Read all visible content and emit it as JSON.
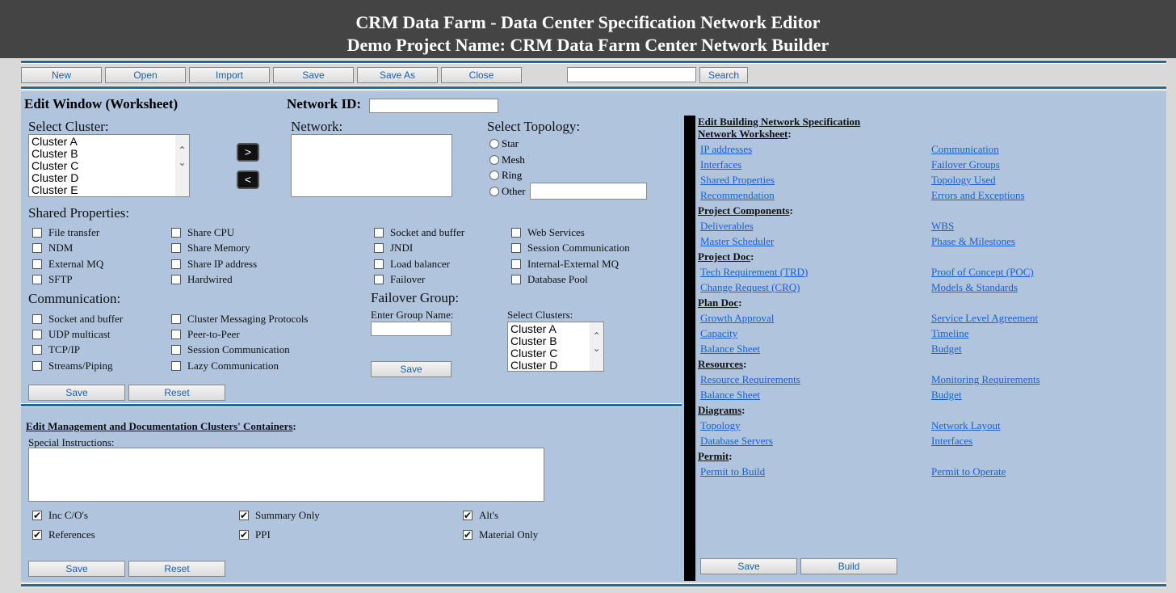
{
  "header": {
    "title": "CRM Data Farm - Data Center Specification Network Editor",
    "subtitle": "Demo Project Name: CRM Data Farm Center Network Builder"
  },
  "toolbar": {
    "buttons": [
      "New",
      "Open",
      "Import",
      "Save",
      "Save As",
      "Close"
    ],
    "search_value": "",
    "search_label": "Search"
  },
  "edit_window": {
    "title": "Edit Window (Worksheet)",
    "network_id_label": "Network ID:",
    "network_id_value": "",
    "select_cluster_label": "Select Cluster:",
    "clusters": [
      "Cluster A",
      "Cluster B",
      "Cluster C",
      "Cluster D",
      "Cluster E"
    ],
    "move_right": ">",
    "move_left": "<",
    "network_label": "Network:",
    "topology_label": "Select Topology:",
    "topologies": [
      "Star",
      "Mesh",
      "Ring",
      "Other"
    ],
    "other_value": "",
    "shared_label": "Shared Properties:",
    "shared": [
      [
        "File transfer",
        "NDM",
        "External MQ",
        "SFTP"
      ],
      [
        "Share CPU",
        "Share Memory",
        "Share IP address",
        "Hardwired"
      ],
      [
        "Socket and buffer",
        "JNDI",
        "Load balancer",
        "Failover"
      ],
      [
        "Web Services",
        "Session Communication",
        "Internal-External MQ",
        "Database Pool"
      ]
    ],
    "communication_label": "Communication:",
    "communication": [
      [
        "Socket and buffer",
        "UDP multicast",
        "TCP/IP",
        "Streams/Piping"
      ],
      [
        "Cluster Messaging Protocols",
        "Peer-to-Peer",
        "Session Communication",
        "Lazy Communication"
      ]
    ],
    "failover_label": "Failover Group:",
    "group_name_label": "Enter Group Name:",
    "group_name_value": "",
    "failover_save": "Save",
    "select_clusters_label": "Select Clusters:",
    "failover_clusters": [
      "Cluster A",
      "Cluster B",
      "Cluster C",
      "Cluster D"
    ],
    "save": "Save",
    "reset": "Reset"
  },
  "management": {
    "title": "Edit Management and Documentation Clusters' Containers",
    "instructions_label": "Special Instructions:",
    "instructions_value": "",
    "options": [
      [
        {
          "label": "Inc C/O's",
          "checked": true
        },
        {
          "label": "References",
          "checked": true
        }
      ],
      [
        {
          "label": "Summary Only",
          "checked": true
        },
        {
          "label": "PPI",
          "checked": true
        }
      ],
      [
        {
          "label": "Alt's",
          "checked": true
        },
        {
          "label": "Material Only",
          "checked": true
        }
      ]
    ],
    "save": "Save",
    "reset": "Reset"
  },
  "spec": {
    "title": "Edit Building Network Specification",
    "sections": [
      {
        "name": "Network Worksheet",
        "links": [
          [
            "IP addresses",
            "Communication"
          ],
          [
            "Interfaces",
            "Failover Groups"
          ],
          [
            "Shared Properties",
            "Topology Used"
          ],
          [
            "Recommendation",
            "Errors and Exceptions"
          ]
        ]
      },
      {
        "name": "Project Components",
        "links": [
          [
            "Deliverables",
            "WBS"
          ],
          [
            "Master Scheduler",
            "Phase & Milestones"
          ]
        ]
      },
      {
        "name": "Project Doc",
        "links": [
          [
            "Tech Requirement (TRD)",
            "Proof of Concept (POC)"
          ],
          [
            "Change Request (CRQ)",
            "Models & Standards"
          ]
        ]
      },
      {
        "name": "Plan Doc",
        "links": [
          [
            "Growth Approval",
            "Service Level Agreement"
          ],
          [
            "Capacity",
            "Timeline"
          ],
          [
            "Balance Sheet",
            "Budget"
          ]
        ]
      },
      {
        "name": "Resources",
        "links": [
          [
            "Resource Requirements",
            "Monitoring Requirements"
          ],
          [
            "Balance Sheet",
            "Budget"
          ]
        ]
      },
      {
        "name": "Diagrams",
        "links": [
          [
            "Topology",
            "Network Layout"
          ],
          [
            "Database Servers",
            "Interfaces"
          ]
        ]
      },
      {
        "name": "Permit",
        "links": [
          [
            "Permit to Build",
            "Permit to Operate"
          ]
        ]
      }
    ],
    "save": "Save",
    "build": "Build"
  },
  "colors": {
    "header_bg": "#444444",
    "panel_bg": "#b0c4de",
    "rule": "#1f6a9b",
    "link": "#1a5fd0"
  }
}
